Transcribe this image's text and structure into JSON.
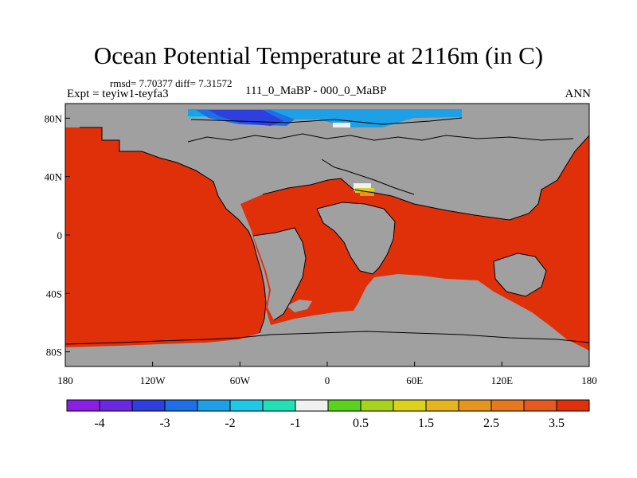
{
  "title": "Ocean Potential Temperature at 2116m (in C)",
  "stats": "rmsd= 7.70377 diff= 7.31572",
  "experiment": "Expt = teyiw1-teyfa3",
  "comparison": "111_0_MaBP - 000_0_MaBP",
  "season": "ANN",
  "axes": {
    "x_ticks": [
      "180",
      "120W",
      "60W",
      "0",
      "60E",
      "120E",
      "180"
    ],
    "x_tick_values": [
      -180,
      -120,
      -60,
      0,
      60,
      120,
      180
    ],
    "y_ticks": [
      "80N",
      "40N",
      "0",
      "40S",
      "80S"
    ],
    "y_tick_values": [
      80,
      40,
      0,
      -40,
      -80
    ]
  },
  "colorbar": {
    "colors": [
      "#8b1ee6",
      "#6a28e0",
      "#2d3fdc",
      "#1e6ee6",
      "#1ea0e6",
      "#1ec8e6",
      "#20e0b4",
      "#f0f0f0",
      "#5ad21e",
      "#a8d21e",
      "#dcd21e",
      "#e6b41e",
      "#e6961e",
      "#e6781e",
      "#e65a1e",
      "#e0300a"
    ],
    "labels": [
      "-4",
      "-3",
      "-2",
      "-1",
      "0.5",
      "1.5",
      "2.5",
      "3.5"
    ]
  },
  "fill_colors": {
    "land": "#a0a0a0",
    "warm_ocean": "#e0300a",
    "arctic_dark": "#2d3fdc",
    "arctic_mid": "#1e6ee6",
    "arctic_light": "#1ea0e6",
    "arctic_cyan": "#1ec8e6",
    "anomaly_yellow": "#dcd21e",
    "anomaly_orange": "#e6961e",
    "anomaly_white": "#f0f0f0"
  }
}
